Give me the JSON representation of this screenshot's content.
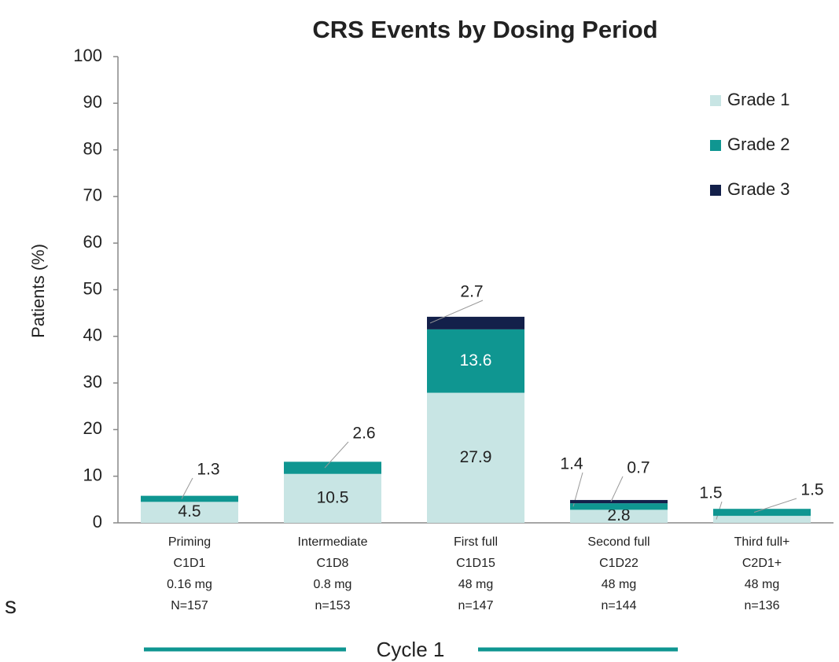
{
  "chart_data": {
    "type": "stacked_bar",
    "title": "CRS Events by Dosing Period",
    "y_label": "Patients (%)",
    "categories": [
      [
        "Priming",
        "C1D1",
        "0.16 mg",
        "N=157"
      ],
      [
        "Intermediate",
        "C1D8",
        "0.8 mg",
        "n=153"
      ],
      [
        "First full",
        "C1D15",
        "48 mg",
        "n=147"
      ],
      [
        "Second full",
        "C1D22",
        "48 mg",
        "n=144"
      ],
      [
        "Third full+",
        "C2D1+",
        "48 mg",
        "n=136"
      ]
    ],
    "series": [
      {
        "name": "Grade 1",
        "color": "#c8e5e4",
        "values": [
          4.5,
          10.5,
          27.9,
          2.8,
          1.5
        ]
      },
      {
        "name": "Grade 2",
        "color": "#0f9691",
        "values": [
          1.3,
          2.6,
          13.6,
          1.4,
          1.5
        ]
      },
      {
        "name": "Grade 3",
        "color": "#13204a",
        "values": [
          null,
          null,
          2.7,
          0.7,
          null
        ]
      }
    ],
    "ylim": [
      0,
      100
    ],
    "yticks": [
      0,
      10,
      20,
      30,
      40,
      50,
      60,
      70,
      80,
      90,
      100
    ],
    "grid": false,
    "legend": "upper right",
    "group_label": "Cycle 1",
    "side_fragment": "s"
  }
}
